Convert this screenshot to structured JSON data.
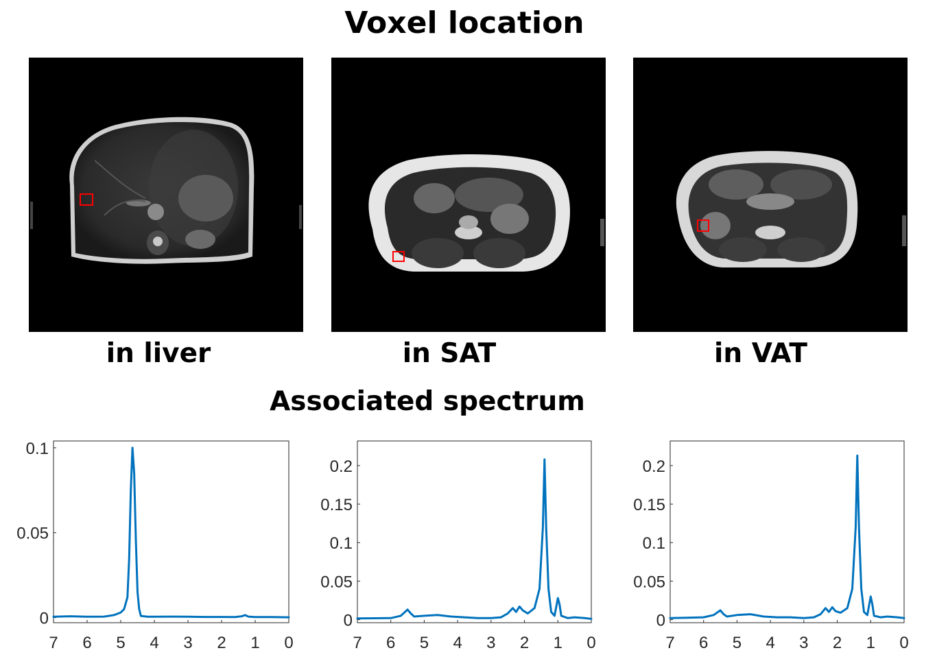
{
  "header": {
    "title": "Voxel location",
    "subtitle": "Associated spectrum"
  },
  "panels": [
    {
      "caption": "in liver",
      "region": "liver"
    },
    {
      "caption": "in SAT",
      "region": "subcutaneous-fat"
    },
    {
      "caption": "in VAT",
      "region": "visceral-fat"
    }
  ],
  "colors": {
    "line": "#0072BD",
    "voxel": "#ff0000",
    "axis": "#262626"
  },
  "chart_data": [
    {
      "type": "line",
      "title": "in liver",
      "xlim": [
        7,
        0
      ],
      "ylim": [
        -0.003,
        0.104
      ],
      "xticks": [
        7,
        6,
        5,
        4,
        3,
        2,
        1,
        0
      ],
      "yticks": [
        0,
        0.05,
        0.1
      ],
      "ytick_labels": [
        "0",
        "0.05",
        "0.1"
      ],
      "x": [
        7.0,
        6.5,
        6.0,
        5.5,
        5.2,
        5.0,
        4.9,
        4.8,
        4.75,
        4.7,
        4.65,
        4.6,
        4.55,
        4.5,
        4.45,
        4.4,
        4.2,
        4.0,
        3.5,
        3.0,
        2.5,
        2.0,
        1.6,
        1.4,
        1.3,
        1.2,
        1.0,
        0.5,
        0.0
      ],
      "y": [
        0.0005,
        0.0008,
        0.0005,
        0.0006,
        0.0015,
        0.003,
        0.005,
        0.012,
        0.035,
        0.075,
        0.1,
        0.085,
        0.045,
        0.015,
        0.005,
        0.001,
        0.0005,
        0.0005,
        0.0006,
        0.0005,
        0.0004,
        0.0004,
        0.0003,
        0.0008,
        0.0015,
        0.0006,
        0.0003,
        0.0003,
        0.0002
      ]
    },
    {
      "type": "line",
      "title": "in SAT",
      "xlim": [
        7,
        0
      ],
      "ylim": [
        -0.004,
        0.232
      ],
      "xticks": [
        7,
        6,
        5,
        4,
        3,
        2,
        1,
        0
      ],
      "yticks": [
        0,
        0.05,
        0.1,
        0.15,
        0.2
      ],
      "ytick_labels": [
        "0",
        "0.05",
        "0.1",
        "0.15",
        "0.2"
      ],
      "x": [
        7.0,
        6.5,
        6.0,
        5.7,
        5.5,
        5.4,
        5.3,
        5.0,
        4.6,
        4.2,
        3.8,
        3.4,
        3.0,
        2.7,
        2.5,
        2.35,
        2.25,
        2.15,
        2.05,
        1.9,
        1.7,
        1.55,
        1.45,
        1.4,
        1.35,
        1.28,
        1.2,
        1.1,
        1.0,
        0.95,
        0.9,
        0.7,
        0.5,
        0.2,
        0.0
      ],
      "y": [
        0.0015,
        0.0018,
        0.002,
        0.005,
        0.013,
        0.008,
        0.004,
        0.005,
        0.006,
        0.004,
        0.003,
        0.002,
        0.002,
        0.003,
        0.008,
        0.015,
        0.01,
        0.017,
        0.012,
        0.008,
        0.015,
        0.04,
        0.12,
        0.208,
        0.12,
        0.04,
        0.01,
        0.005,
        0.028,
        0.02,
        0.005,
        0.002,
        0.003,
        0.002,
        0.001
      ]
    },
    {
      "type": "line",
      "title": "in VAT",
      "xlim": [
        7,
        0
      ],
      "ylim": [
        -0.004,
        0.232
      ],
      "xticks": [
        7,
        6,
        5,
        4,
        3,
        2,
        1,
        0
      ],
      "yticks": [
        0,
        0.05,
        0.1,
        0.15,
        0.2
      ],
      "ytick_labels": [
        "0",
        "0.05",
        "0.1",
        "0.15",
        "0.2"
      ],
      "x": [
        7.0,
        6.5,
        6.0,
        5.7,
        5.5,
        5.4,
        5.3,
        5.0,
        4.6,
        4.2,
        3.8,
        3.4,
        3.0,
        2.7,
        2.5,
        2.35,
        2.25,
        2.15,
        2.05,
        1.9,
        1.7,
        1.55,
        1.45,
        1.4,
        1.35,
        1.28,
        1.2,
        1.1,
        1.0,
        0.95,
        0.9,
        0.7,
        0.5,
        0.2,
        0.0
      ],
      "y": [
        0.002,
        0.0025,
        0.003,
        0.006,
        0.012,
        0.007,
        0.004,
        0.006,
        0.007,
        0.004,
        0.003,
        0.003,
        0.002,
        0.003,
        0.007,
        0.015,
        0.01,
        0.016,
        0.011,
        0.009,
        0.015,
        0.04,
        0.12,
        0.213,
        0.12,
        0.04,
        0.01,
        0.006,
        0.03,
        0.02,
        0.005,
        0.003,
        0.004,
        0.003,
        0.002
      ]
    }
  ]
}
